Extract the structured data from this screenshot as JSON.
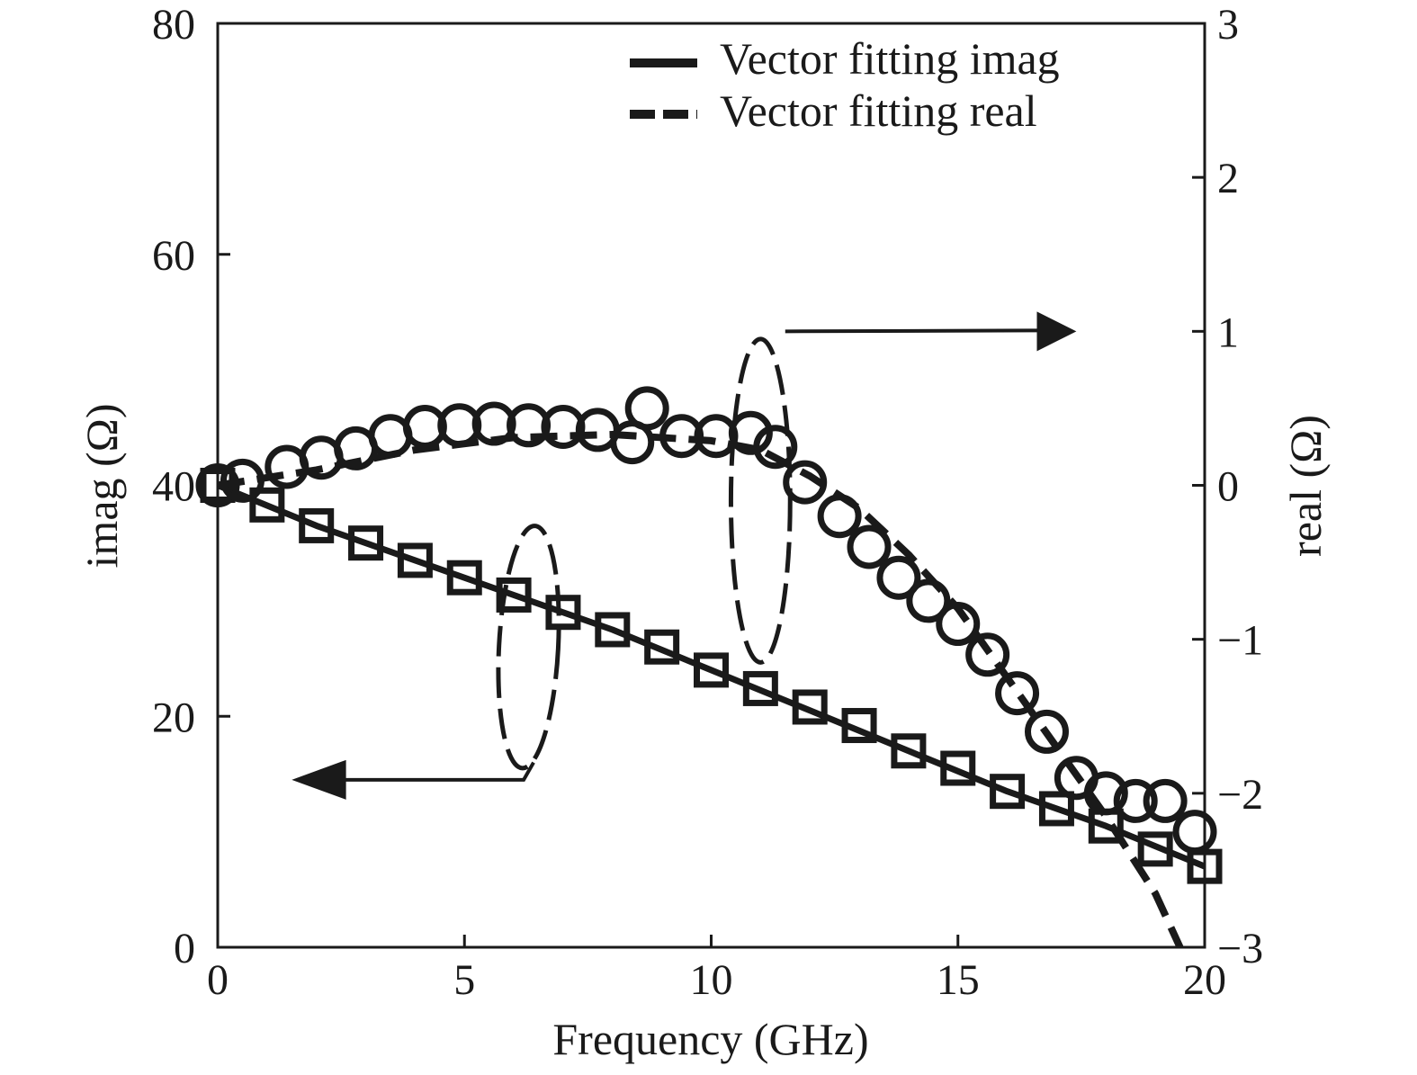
{
  "chart_data": {
    "type": "line",
    "title": "",
    "xlabel": "Frequency (GHz)",
    "ylabel_left": "imag (Ω)",
    "ylabel_right": "real (Ω)",
    "xlim": [
      0,
      20
    ],
    "ylim_left": [
      0,
      80
    ],
    "ylim_right": [
      -3,
      3
    ],
    "x_ticks": [
      "0",
      "5",
      "10",
      "15",
      "20"
    ],
    "y_left_ticks": [
      "0",
      "20",
      "40",
      "60",
      "80"
    ],
    "y_right_ticks": [
      "−3",
      "−2",
      "−1",
      "0",
      "1",
      "2",
      "3"
    ],
    "grid": false,
    "legend_position": "top-right",
    "legend": [
      {
        "label": "Vector fitting imag",
        "style": "solid"
      },
      {
        "label": "Vector fitting real",
        "style": "dashed"
      }
    ],
    "series": [
      {
        "name": "Vector fitting imag",
        "axis": "left",
        "style": "solid",
        "x": [
          0,
          2,
          4,
          6,
          8,
          10,
          12,
          14,
          16,
          18,
          20
        ],
        "values": [
          40,
          36.5,
          33.5,
          30.5,
          27.5,
          24,
          20.5,
          17,
          13.5,
          10.5,
          7
        ]
      },
      {
        "name": "Vector fitting real",
        "axis": "right",
        "style": "dashed",
        "x": [
          0,
          2,
          4,
          6,
          8,
          10,
          11,
          12,
          13,
          14,
          15,
          16,
          17,
          18,
          19,
          19.5
        ],
        "values": [
          0,
          0.1,
          0.23,
          0.31,
          0.33,
          0.29,
          0.23,
          0.06,
          -0.15,
          -0.45,
          -0.8,
          -1.25,
          -1.7,
          -2.15,
          -2.65,
          -3.0
        ]
      },
      {
        "axis": "left",
        "style": "square-markers",
        "x": [
          0,
          1,
          2,
          3,
          4,
          5,
          6,
          7,
          8,
          9,
          10,
          11,
          12,
          13,
          14,
          15,
          16,
          17,
          18,
          19,
          20
        ],
        "values": [
          40,
          38.3,
          36.5,
          35,
          33.5,
          32,
          30.5,
          29,
          27.5,
          26,
          24,
          22.4,
          20.8,
          19.2,
          17,
          15.5,
          13.5,
          12,
          10.5,
          8.5,
          7
        ]
      },
      {
        "axis": "right",
        "style": "circle-markers",
        "x": [
          0,
          0.5,
          1.4,
          2.1,
          2.8,
          3.5,
          4.2,
          4.9,
          5.6,
          6.3,
          7.0,
          7.7,
          8.4,
          8.7,
          9.4,
          10.1,
          10.8,
          11.3,
          11.9,
          12.6,
          13.2,
          13.8,
          14.4,
          15.0,
          15.6,
          16.2,
          16.8,
          17.4,
          18.0,
          18.6,
          19.2,
          19.8
        ],
        "values": [
          0,
          0.03,
          0.12,
          0.18,
          0.24,
          0.32,
          0.38,
          0.39,
          0.4,
          0.39,
          0.38,
          0.36,
          0.28,
          0.5,
          0.32,
          0.32,
          0.34,
          0.25,
          0.02,
          -0.2,
          -0.4,
          -0.6,
          -0.75,
          -0.9,
          -1.1,
          -1.35,
          -1.6,
          -1.9,
          -2.0,
          -2.05,
          -2.05,
          -2.25
        ]
      }
    ],
    "annotations": [
      {
        "text": "",
        "shape": "dashed ellipse around left-axis curves with arrow pointing left"
      },
      {
        "text": "",
        "shape": "dashed ellipse around right-axis curves with arrow pointing right"
      }
    ]
  }
}
